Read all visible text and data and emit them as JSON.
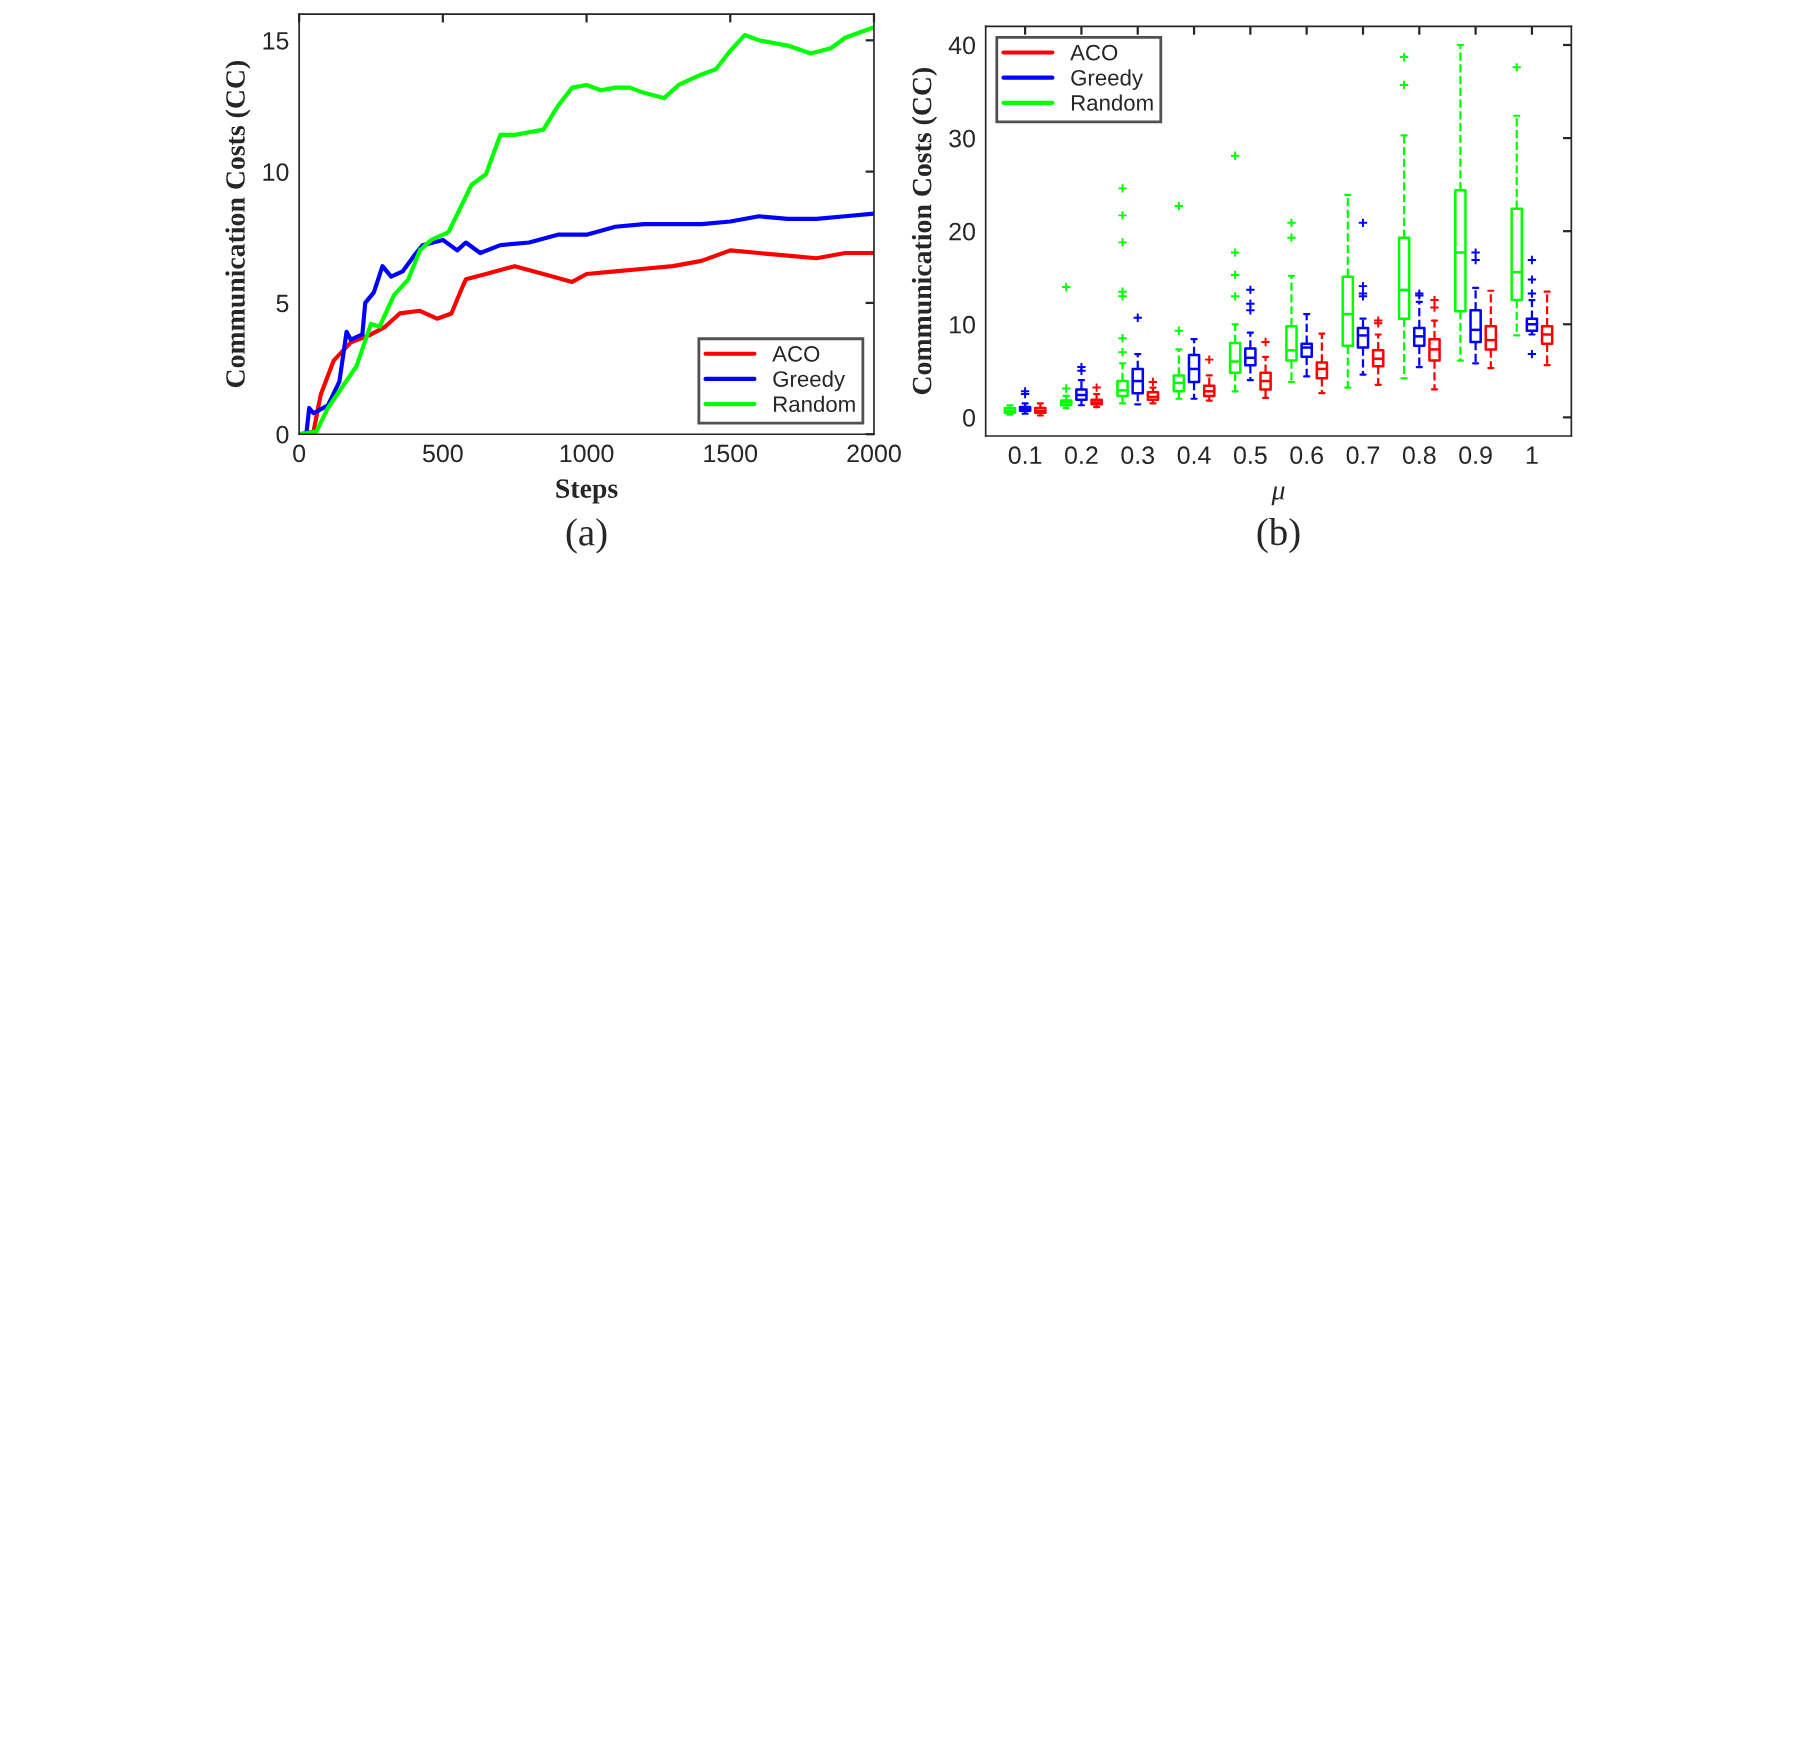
{
  "chart_data": [
    {
      "type": "line",
      "xlabel": "Steps",
      "ylabel": "Communication Costs (CC)",
      "xlim": [
        0,
        2000
      ],
      "xticks": [
        0,
        500,
        1000,
        1500,
        2000
      ],
      "ylim": [
        0,
        16
      ],
      "yticks": [
        0,
        5,
        10,
        15
      ],
      "legend": "bottom right",
      "grid": false,
      "annotations": [
        "(a)"
      ],
      "series": [
        {
          "name": "ACO",
          "color": "#ff0000",
          "x": [
            0,
            50,
            75,
            120,
            180,
            250,
            300,
            350,
            420,
            480,
            530,
            560,
            580,
            650,
            750,
            850,
            950,
            1000,
            1100,
            1200,
            1300,
            1400,
            1500,
            1600,
            1700,
            1800,
            1900,
            2000
          ],
          "values": [
            0,
            0.1,
            1.5,
            2.8,
            3.5,
            3.8,
            4.1,
            4.6,
            4.7,
            4.4,
            4.6,
            5.4,
            5.9,
            6.1,
            6.4,
            6.1,
            5.8,
            6.1,
            6.2,
            6.3,
            6.4,
            6.6,
            7.0,
            6.9,
            6.8,
            6.7,
            6.9,
            6.9
          ]
        },
        {
          "name": "Greedy",
          "color": "#0000ff",
          "x": [
            0,
            25,
            35,
            50,
            100,
            140,
            165,
            180,
            220,
            230,
            260,
            290,
            320,
            360,
            400,
            430,
            500,
            550,
            580,
            630,
            700,
            800,
            900,
            1000,
            1100,
            1200,
            1300,
            1400,
            1500,
            1600,
            1700,
            1800,
            1900,
            2000
          ],
          "values": [
            0,
            0,
            1.0,
            0.8,
            1.1,
            2.0,
            3.9,
            3.6,
            3.8,
            5.0,
            5.4,
            6.4,
            6.0,
            6.2,
            6.8,
            7.2,
            7.4,
            7.0,
            7.3,
            6.9,
            7.2,
            7.3,
            7.6,
            7.6,
            7.9,
            8.0,
            8.0,
            8.0,
            8.1,
            8.3,
            8.2,
            8.2,
            8.3,
            8.4
          ]
        },
        {
          "name": "Random",
          "color": "#00ff00",
          "x": [
            0,
            60,
            100,
            150,
            200,
            250,
            280,
            330,
            380,
            420,
            460,
            520,
            560,
            600,
            650,
            700,
            750,
            800,
            850,
            900,
            950,
            1000,
            1050,
            1100,
            1150,
            1200,
            1270,
            1320,
            1400,
            1450,
            1500,
            1550,
            1600,
            1700,
            1780,
            1850,
            1900,
            1950,
            2000
          ],
          "values": [
            0,
            0.1,
            1.0,
            1.8,
            2.6,
            4.2,
            4.1,
            5.3,
            5.9,
            7.0,
            7.4,
            7.7,
            8.6,
            9.5,
            9.9,
            11.4,
            11.4,
            11.5,
            11.6,
            12.5,
            13.2,
            13.3,
            13.1,
            13.2,
            13.2,
            13.0,
            12.8,
            13.3,
            13.7,
            13.9,
            14.6,
            15.2,
            15.0,
            14.8,
            14.5,
            14.7,
            15.1,
            15.3,
            15.5
          ]
        }
      ]
    },
    {
      "type": "box",
      "xlabel": "μ",
      "ylabel": "Communication Costs (CC)",
      "categories": [
        "0.1",
        "0.2",
        "0.3",
        "0.4",
        "0.5",
        "0.6",
        "0.7",
        "0.8",
        "0.9",
        "1"
      ],
      "ylim": [
        -2,
        42
      ],
      "yticks": [
        0,
        10,
        20,
        30,
        40
      ],
      "legend": "top left",
      "grid": false,
      "annotations": [
        "(b)"
      ],
      "series": [
        {
          "name": "ACO",
          "color": "#ff0000",
          "boxes": [
            {
              "low": 0.2,
              "q1": 0.5,
              "median": 0.7,
              "q3": 1.0,
              "high": 1.5
            },
            {
              "low": 1.1,
              "q1": 1.4,
              "median": 1.6,
              "q3": 1.9,
              "high": 2.5,
              "outliers": [
                3.2
              ]
            },
            {
              "low": 1.5,
              "q1": 1.9,
              "median": 2.2,
              "q3": 2.7,
              "high": 3.2,
              "outliers": [
                3.8
              ]
            },
            {
              "low": 1.8,
              "q1": 2.3,
              "median": 2.8,
              "q3": 3.4,
              "high": 4.5,
              "outliers": [
                6.2
              ]
            },
            {
              "low": 2.1,
              "q1": 3.0,
              "median": 3.9,
              "q3": 4.8,
              "high": 6.5,
              "outliers": [
                8.1
              ]
            },
            {
              "low": 2.6,
              "q1": 4.2,
              "median": 5.2,
              "q3": 5.9,
              "high": 9.0
            },
            {
              "low": 3.5,
              "q1": 5.5,
              "median": 6.3,
              "q3": 7.2,
              "high": 8.9,
              "outliers": [
                10.4,
                10.1
              ]
            },
            {
              "low": 3.0,
              "q1": 6.1,
              "median": 7.3,
              "q3": 8.4,
              "high": 10.4,
              "outliers": [
                12.6,
                11.8
              ]
            },
            {
              "low": 5.3,
              "q1": 7.3,
              "median": 8.3,
              "q3": 9.8,
              "high": 13.6
            },
            {
              "low": 5.6,
              "q1": 7.9,
              "median": 8.9,
              "q3": 9.8,
              "high": 13.5
            }
          ]
        },
        {
          "name": "Greedy",
          "color": "#0000ff",
          "boxes": [
            {
              "low": 0.4,
              "q1": 0.7,
              "median": 0.9,
              "q3": 1.1,
              "high": 1.5,
              "outliers": [
                2.5,
                2.8
              ]
            },
            {
              "low": 1.3,
              "q1": 1.9,
              "median": 2.4,
              "q3": 3.0,
              "high": 4.0,
              "outliers": [
                5.0,
                5.4
              ]
            },
            {
              "low": 1.4,
              "q1": 2.6,
              "median": 3.9,
              "q3": 5.2,
              "high": 6.8,
              "outliers": [
                10.7
              ]
            },
            {
              "low": 2.0,
              "q1": 3.8,
              "median": 5.2,
              "q3": 6.7,
              "high": 8.4
            },
            {
              "low": 4.0,
              "q1": 5.6,
              "median": 6.4,
              "q3": 7.4,
              "high": 9.1,
              "outliers": [
                13.7,
                12.2,
                11.5
              ]
            },
            {
              "low": 4.4,
              "q1": 6.5,
              "median": 7.5,
              "q3": 7.9,
              "high": 11.1
            },
            {
              "low": 4.6,
              "q1": 7.5,
              "median": 8.8,
              "q3": 9.6,
              "high": 10.6,
              "outliers": [
                20.9,
                14.1,
                13.3,
                13.0
              ]
            },
            {
              "low": 5.4,
              "q1": 7.7,
              "median": 8.7,
              "q3": 9.6,
              "high": 12.4,
              "outliers": [
                13.3,
                13.1
              ]
            },
            {
              "low": 5.8,
              "q1": 8.1,
              "median": 9.4,
              "q3": 11.5,
              "high": 13.9,
              "outliers": [
                17.7,
                16.9
              ]
            },
            {
              "low": 8.9,
              "q1": 9.3,
              "median": 10.0,
              "q3": 10.6,
              "high": 12.6,
              "outliers": [
                16.9,
                14.8,
                13.3,
                6.8
              ]
            }
          ]
        },
        {
          "name": "Random",
          "color": "#00ff00",
          "boxes": [
            {
              "low": 0.3,
              "q1": 0.5,
              "median": 0.7,
              "q3": 1.0,
              "high": 1.3
            },
            {
              "low": 1.0,
              "q1": 1.3,
              "median": 1.6,
              "q3": 1.8,
              "high": 2.3,
              "outliers": [
                3.1,
                14.0
              ]
            },
            {
              "low": 1.5,
              "q1": 2.3,
              "median": 2.9,
              "q3": 3.9,
              "high": 5.8,
              "outliers": [
                7.0,
                8.5,
                13.0,
                13.5,
                18.8,
                21.7,
                24.6
              ]
            },
            {
              "low": 2.0,
              "q1": 2.8,
              "median": 3.7,
              "q3": 4.5,
              "high": 7.3,
              "outliers": [
                9.3,
                22.7
              ]
            },
            {
              "low": 2.8,
              "q1": 4.8,
              "median": 6.0,
              "q3": 8.0,
              "high": 10.0,
              "outliers": [
                28.1,
                17.7,
                15.3,
                13.0
              ]
            },
            {
              "low": 3.8,
              "q1": 6.1,
              "median": 7.2,
              "q3": 9.8,
              "high": 15.2,
              "outliers": [
                20.9,
                19.3
              ]
            },
            {
              "low": 3.2,
              "q1": 7.7,
              "median": 11.1,
              "q3": 15.1,
              "high": 23.9
            },
            {
              "low": 4.2,
              "q1": 10.6,
              "median": 13.7,
              "q3": 19.3,
              "high": 30.3,
              "outliers": [
                38.7,
                35.7
              ]
            },
            {
              "low": 6.1,
              "q1": 11.4,
              "median": 17.7,
              "q3": 24.4,
              "high": 40.0
            },
            {
              "low": 8.8,
              "q1": 12.6,
              "median": 15.6,
              "q3": 22.4,
              "high": 32.4,
              "outliers": [
                37.6
              ]
            }
          ]
        }
      ]
    }
  ]
}
